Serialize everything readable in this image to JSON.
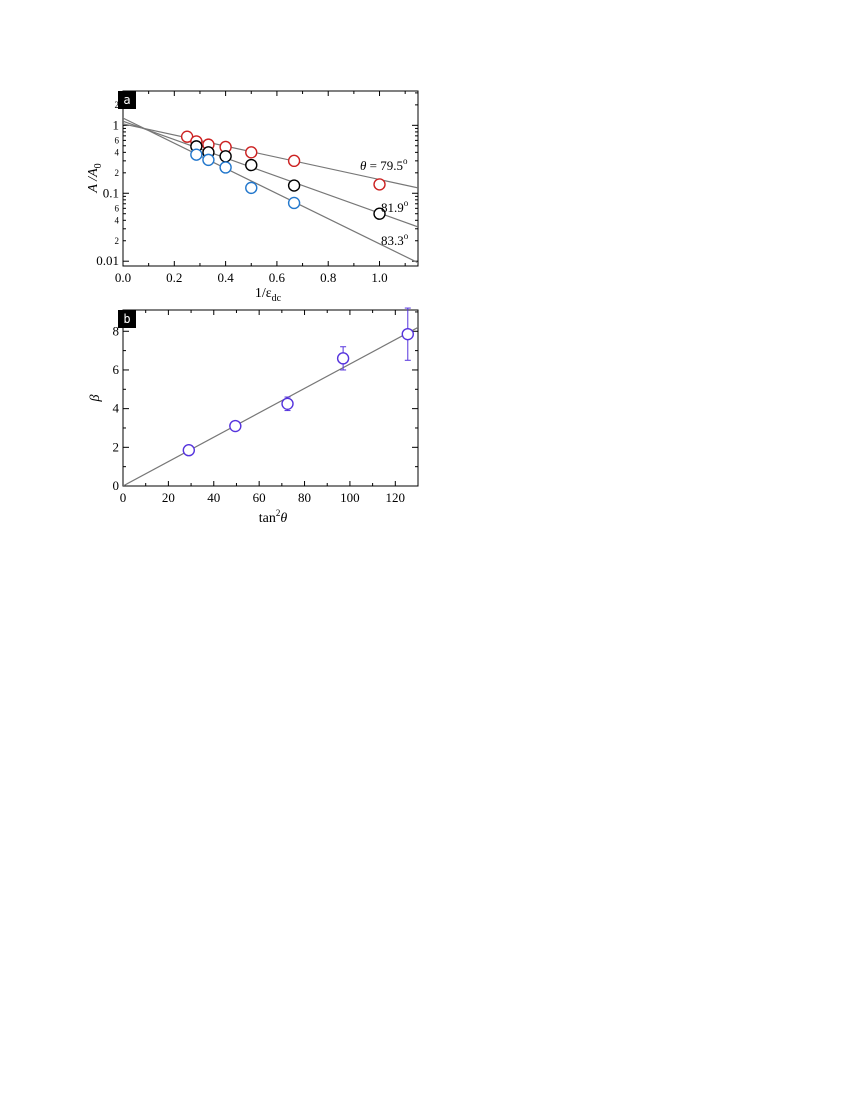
{
  "chart_data": [
    {
      "panel": "a",
      "type": "scatter",
      "xlabel": {
        "main": "1/ε",
        "sub": "dc"
      },
      "ylabel": {
        "main": "A /A",
        "sub": "0"
      },
      "xlim": [
        0.0,
        1.15
      ],
      "ylim": [
        0.0085,
        3.2
      ],
      "yscale": "log",
      "grid": false,
      "x_ticks": [
        0.0,
        0.2,
        0.4,
        0.6,
        0.8,
        1.0
      ],
      "x_tick_labels": [
        "0.0",
        "0.2",
        "0.4",
        "0.6",
        "0.8",
        "1.0"
      ],
      "y_major_ticks": [
        0.01,
        0.1,
        1
      ],
      "y_major_labels": [
        "0.01",
        "0.1",
        "1"
      ],
      "y_minor_labeled": [
        {
          "v": 0.02,
          "label": "2"
        },
        {
          "v": 0.04,
          "label": "4"
        },
        {
          "v": 0.06,
          "label": "6"
        },
        {
          "v": 0.2,
          "label": "2"
        },
        {
          "v": 0.4,
          "label": "4"
        },
        {
          "v": 0.6,
          "label": "6"
        },
        {
          "v": 2,
          "label": "2"
        }
      ],
      "series": [
        {
          "name": "79.5",
          "color": "#cc2222",
          "x": [
            0.25,
            0.286,
            0.333,
            0.4,
            0.5,
            0.667,
            1.0
          ],
          "y": [
            0.68,
            0.58,
            0.52,
            0.48,
            0.4,
            0.3,
            0.135
          ],
          "fit": {
            "x": [
              0.0,
              1.15
            ],
            "y": [
              1.05,
              0.12
            ]
          },
          "label": {
            "prefix": "θ = ",
            "value": "79.5",
            "sup": "o"
          }
        },
        {
          "name": "81.9",
          "color": "#000000",
          "x": [
            0.286,
            0.333,
            0.4,
            0.5,
            0.667,
            1.0
          ],
          "y": [
            0.49,
            0.4,
            0.35,
            0.26,
            0.13,
            0.05
          ],
          "fit": {
            "x": [
              0.0,
              1.15
            ],
            "y": [
              1.15,
              0.032
            ]
          },
          "label": {
            "prefix": "",
            "value": "81.9",
            "sup": "o"
          }
        },
        {
          "name": "83.3",
          "color": "#2277cc",
          "x": [
            0.286,
            0.333,
            0.4,
            0.5,
            0.667
          ],
          "y": [
            0.37,
            0.31,
            0.24,
            0.12,
            0.072
          ],
          "fit": {
            "x": [
              0.0,
              1.15
            ],
            "y": [
              1.28,
              0.0095
            ]
          },
          "label": {
            "prefix": "",
            "value": "83.3",
            "sup": "o"
          }
        }
      ]
    },
    {
      "panel": "b",
      "type": "scatter",
      "xlabel": {
        "main": "tan",
        "sup": "2",
        "tail": "θ"
      },
      "ylabel": {
        "main": "β"
      },
      "xlim": [
        0,
        130
      ],
      "ylim": [
        0,
        9.1
      ],
      "grid": false,
      "x_ticks": [
        0,
        20,
        40,
        60,
        80,
        100,
        120
      ],
      "x_tick_labels": [
        "0",
        "20",
        "40",
        "60",
        "80",
        "100",
        "120"
      ],
      "y_ticks": [
        0,
        2,
        4,
        6,
        8
      ],
      "y_tick_labels": [
        "0",
        "2",
        "4",
        "6",
        "8"
      ],
      "series": [
        {
          "color": "#5533dd",
          "x": [
            29,
            49.5,
            72.5,
            97,
            125.5
          ],
          "y": [
            1.85,
            3.1,
            4.25,
            6.6,
            7.85
          ],
          "err": [
            0.05,
            0.05,
            0.35,
            0.6,
            1.35
          ],
          "fit": {
            "x": [
              0,
              130
            ],
            "y": [
              0,
              8.2
            ]
          }
        }
      ]
    }
  ]
}
